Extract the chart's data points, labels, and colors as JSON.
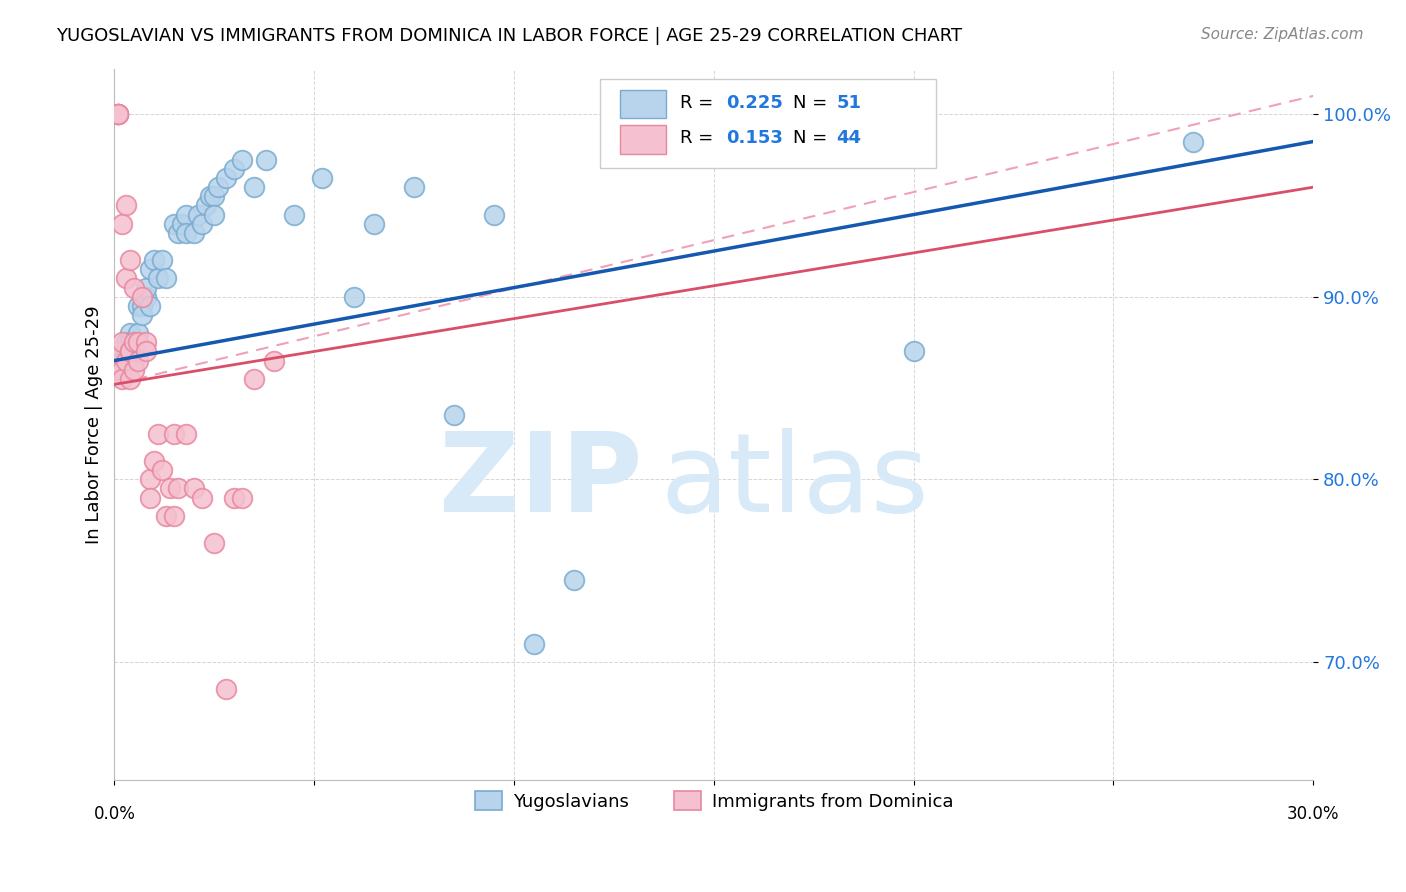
{
  "title": "YUGOSLAVIAN VS IMMIGRANTS FROM DOMINICA IN LABOR FORCE | AGE 25-29 CORRELATION CHART",
  "source": "Source: ZipAtlas.com",
  "ylabel": "In Labor Force | Age 25-29",
  "ytick_values": [
    0.7,
    0.8,
    0.9,
    1.0
  ],
  "xlim": [
    0.0,
    0.3
  ],
  "ylim": [
    0.635,
    1.025
  ],
  "blue_color": "#b8d4ec",
  "pink_color": "#f5c0cf",
  "blue_edge": "#7aabcf",
  "pink_edge": "#e8889e",
  "trend_blue_color": "#1558b0",
  "trend_pink_color": "#d94f6a",
  "trend_pink_dash_color": "#f0a0b8",
  "watermark_zip_color": "#d8eaf8",
  "watermark_atlas_color": "#d8eaf8",
  "blue_scatter_x": [
    0.001,
    0.002,
    0.002,
    0.003,
    0.003,
    0.004,
    0.004,
    0.005,
    0.005,
    0.005,
    0.006,
    0.006,
    0.007,
    0.007,
    0.008,
    0.008,
    0.009,
    0.009,
    0.01,
    0.011,
    0.012,
    0.013,
    0.015,
    0.016,
    0.017,
    0.018,
    0.018,
    0.02,
    0.021,
    0.022,
    0.023,
    0.024,
    0.025,
    0.025,
    0.026,
    0.028,
    0.03,
    0.032,
    0.035,
    0.038,
    0.045,
    0.052,
    0.06,
    0.065,
    0.075,
    0.085,
    0.095,
    0.105,
    0.115,
    0.2,
    0.27
  ],
  "blue_scatter_y": [
    0.86,
    0.87,
    0.865,
    0.875,
    0.865,
    0.88,
    0.875,
    0.875,
    0.87,
    0.865,
    0.88,
    0.895,
    0.895,
    0.89,
    0.9,
    0.905,
    0.895,
    0.915,
    0.92,
    0.91,
    0.92,
    0.91,
    0.94,
    0.935,
    0.94,
    0.945,
    0.935,
    0.935,
    0.945,
    0.94,
    0.95,
    0.955,
    0.955,
    0.945,
    0.96,
    0.965,
    0.97,
    0.975,
    0.96,
    0.975,
    0.945,
    0.965,
    0.9,
    0.94,
    0.96,
    0.835,
    0.945,
    0.71,
    0.745,
    0.87,
    0.985
  ],
  "pink_scatter_x": [
    0.001,
    0.001,
    0.001,
    0.001,
    0.001,
    0.001,
    0.002,
    0.002,
    0.002,
    0.002,
    0.003,
    0.003,
    0.003,
    0.004,
    0.004,
    0.004,
    0.004,
    0.005,
    0.005,
    0.005,
    0.006,
    0.006,
    0.007,
    0.008,
    0.008,
    0.009,
    0.009,
    0.01,
    0.011,
    0.012,
    0.013,
    0.014,
    0.015,
    0.015,
    0.016,
    0.018,
    0.02,
    0.022,
    0.025,
    0.028,
    0.03,
    0.032,
    0.035,
    0.04
  ],
  "pink_scatter_y": [
    1.0,
    1.0,
    1.0,
    1.0,
    0.87,
    0.86,
    0.94,
    0.875,
    0.86,
    0.855,
    0.95,
    0.91,
    0.865,
    0.92,
    0.87,
    0.87,
    0.855,
    0.905,
    0.875,
    0.86,
    0.875,
    0.865,
    0.9,
    0.875,
    0.87,
    0.8,
    0.79,
    0.81,
    0.825,
    0.805,
    0.78,
    0.795,
    0.825,
    0.78,
    0.795,
    0.825,
    0.795,
    0.79,
    0.765,
    0.685,
    0.79,
    0.79,
    0.855,
    0.865
  ],
  "legend_blue_label": "Yugoslavians",
  "legend_pink_label": "Immigrants from Dominica",
  "legend_R_blue": "0.225",
  "legend_N_blue": "51",
  "legend_R_pink": "0.153",
  "legend_N_pink": "44"
}
